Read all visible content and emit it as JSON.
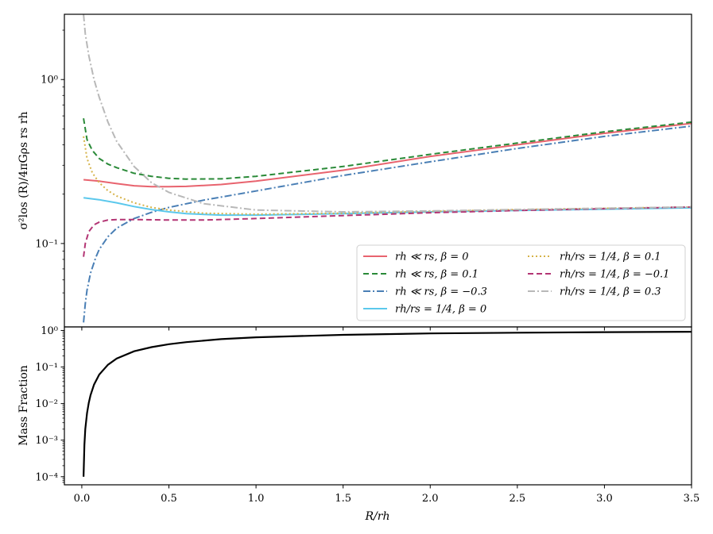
{
  "chart_data": [
    {
      "type": "line",
      "ylabel": "σ²los (R)/4πGρs rs rh",
      "yscale": "log",
      "ylim": [
        0.031,
        2.5
      ],
      "xlim": [
        -0.1,
        3.5
      ],
      "ytick_labels": [
        "10⁻¹",
        "10⁰"
      ],
      "legend": {
        "placement": "lower-right",
        "columns": 2
      },
      "series": [
        {
          "name": "rh ≪ rs, β = 0",
          "color": "#e8636e",
          "dash": "solid",
          "x": [
            0.01,
            0.1,
            0.2,
            0.3,
            0.4,
            0.5,
            0.6,
            0.8,
            1.0,
            1.5,
            2.0,
            2.5,
            3.0,
            3.5
          ],
          "y": [
            0.245,
            0.24,
            0.232,
            0.225,
            0.222,
            0.222,
            0.223,
            0.229,
            0.24,
            0.28,
            0.34,
            0.4,
            0.47,
            0.54
          ]
        },
        {
          "name": "rh ≪ rs, β = 0.1",
          "color": "#2a8a38",
          "dash": "dashed",
          "x": [
            0.01,
            0.03,
            0.06,
            0.1,
            0.15,
            0.2,
            0.3,
            0.4,
            0.5,
            0.6,
            0.8,
            1.0,
            1.5,
            2.0,
            2.5,
            3.0,
            3.5
          ],
          "y": [
            0.58,
            0.43,
            0.37,
            0.33,
            0.305,
            0.29,
            0.268,
            0.257,
            0.25,
            0.247,
            0.248,
            0.257,
            0.295,
            0.35,
            0.41,
            0.48,
            0.55
          ]
        },
        {
          "name": "rh ≪ rs, β = −0.3",
          "color": "#4a7fb5",
          "dash": "dashdot",
          "x": [
            0.01,
            0.02,
            0.03,
            0.05,
            0.08,
            0.1,
            0.15,
            0.2,
            0.3,
            0.4,
            0.5,
            0.7,
            1.0,
            1.5,
            2.0,
            2.5,
            3.0,
            3.5
          ],
          "y": [
            0.033,
            0.043,
            0.052,
            0.066,
            0.082,
            0.092,
            0.11,
            0.124,
            0.142,
            0.155,
            0.166,
            0.184,
            0.209,
            0.26,
            0.315,
            0.38,
            0.45,
            0.52
          ]
        },
        {
          "name": "rh/rs = 1/4, β = 0",
          "color": "#5bc8ec",
          "dash": "solid",
          "x": [
            0.01,
            0.1,
            0.2,
            0.3,
            0.4,
            0.5,
            0.6,
            0.8,
            1.0,
            1.5,
            2.0,
            2.5,
            3.0,
            3.5
          ],
          "y": [
            0.19,
            0.185,
            0.177,
            0.168,
            0.161,
            0.156,
            0.152,
            0.149,
            0.149,
            0.152,
            0.156,
            0.159,
            0.162,
            0.165
          ]
        },
        {
          "name": "rh/rs = 1/4, β = 0.1",
          "color": "#d6b34a",
          "dash": "dotted",
          "x": [
            0.01,
            0.03,
            0.06,
            0.1,
            0.15,
            0.2,
            0.3,
            0.4,
            0.5,
            0.7,
            1.0,
            1.5,
            2.0,
            2.5,
            3.0,
            3.5
          ],
          "y": [
            0.45,
            0.33,
            0.27,
            0.235,
            0.21,
            0.195,
            0.177,
            0.166,
            0.16,
            0.153,
            0.151,
            0.153,
            0.157,
            0.161,
            0.164,
            0.167
          ]
        },
        {
          "name": "rh/rs = 1/4, β = −0.1",
          "color": "#b33574",
          "dash": "dashed",
          "x": [
            0.01,
            0.02,
            0.04,
            0.07,
            0.1,
            0.15,
            0.2,
            0.3,
            0.5,
            0.7,
            1.0,
            1.5,
            2.0,
            2.5,
            3.0,
            3.5
          ],
          "y": [
            0.083,
            0.1,
            0.118,
            0.13,
            0.135,
            0.139,
            0.14,
            0.14,
            0.139,
            0.139,
            0.142,
            0.148,
            0.154,
            0.159,
            0.163,
            0.167
          ]
        },
        {
          "name": "rh/rs = 1/4, β = 0.3",
          "color": "#b8b8b8",
          "dash": "dashdot",
          "x": [
            0.01,
            0.02,
            0.04,
            0.07,
            0.1,
            0.15,
            0.2,
            0.3,
            0.4,
            0.5,
            0.7,
            1.0,
            1.5,
            2.0,
            2.5,
            3.0,
            3.5
          ],
          "y": [
            2.5,
            1.9,
            1.4,
            1.0,
            0.78,
            0.55,
            0.42,
            0.295,
            0.235,
            0.205,
            0.175,
            0.16,
            0.156,
            0.158,
            0.161,
            0.164,
            0.167
          ]
        }
      ]
    },
    {
      "type": "line",
      "xlabel": "R/rh",
      "ylabel": "Mass Fraction",
      "yscale": "log",
      "ylim": [
        6e-05,
        1.25
      ],
      "xlim": [
        -0.1,
        3.5
      ],
      "xtick_labels": [
        "0.0",
        "0.5",
        "1.0",
        "1.5",
        "2.0",
        "2.5",
        "3.0",
        "3.5"
      ],
      "ytick_labels": [
        "10⁻⁴",
        "10⁻³",
        "10⁻²",
        "10⁻¹",
        "10⁰"
      ],
      "series": [
        {
          "color": "#000000",
          "dash": "solid",
          "x": [
            0.01,
            0.015,
            0.02,
            0.03,
            0.04,
            0.05,
            0.07,
            0.1,
            0.15,
            0.2,
            0.3,
            0.4,
            0.5,
            0.6,
            0.8,
            1.0,
            1.5,
            2.0,
            2.5,
            3.0,
            3.5
          ],
          "y": [
            0.0001,
            0.00075,
            0.002,
            0.0055,
            0.0105,
            0.017,
            0.033,
            0.062,
            0.115,
            0.17,
            0.27,
            0.35,
            0.42,
            0.48,
            0.58,
            0.65,
            0.76,
            0.83,
            0.87,
            0.9,
            0.92
          ]
        }
      ]
    }
  ]
}
